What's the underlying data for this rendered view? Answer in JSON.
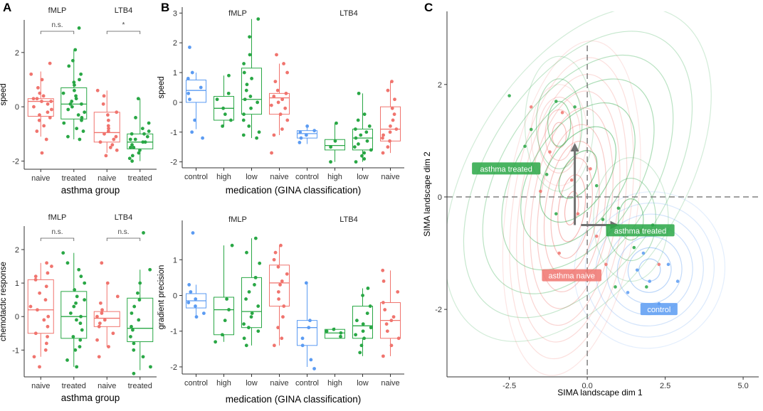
{
  "panels": {
    "a": "A",
    "b": "B",
    "c": "C"
  },
  "colors": {
    "naive": "#F0746E",
    "treated": "#29A745",
    "control": "#5B9BF2",
    "grid": "#dddddd",
    "axis": "#333333",
    "arrow": "#707070"
  },
  "chart_data": [
    {
      "id": "A-top",
      "type": "box",
      "title": "",
      "xlabel": "asthma group",
      "ylabel": "speed",
      "ylim": [
        -2.3,
        3.2
      ],
      "yticks": [
        -2,
        0,
        2
      ],
      "facets": [
        {
          "label": "fMLP",
          "significance": "n.s."
        },
        {
          "label": "LTB4",
          "significance": "*"
        }
      ],
      "groups": [
        {
          "facet": 0,
          "category": "naive",
          "color": "naive",
          "q1": -0.35,
          "median": 0.2,
          "q3": 0.3,
          "lo": -1.1,
          "hi": 1.3,
          "points": [
            1.6,
            1.2,
            1.0,
            0.7,
            0.5,
            0.4,
            0.3,
            0.3,
            0.2,
            0.2,
            0.1,
            0.0,
            -0.1,
            -0.2,
            -0.3,
            -0.4,
            -0.5,
            -0.7,
            -0.9,
            -1.2,
            -1.7
          ]
        },
        {
          "facet": 0,
          "category": "treated",
          "color": "treated",
          "q1": -0.45,
          "median": 0.1,
          "q3": 0.7,
          "lo": -1.2,
          "hi": 2.1,
          "points": [
            2.9,
            2.1,
            1.7,
            1.5,
            1.2,
            1.0,
            0.9,
            0.8,
            0.6,
            0.5,
            0.4,
            0.3,
            0.2,
            0.1,
            0.1,
            0.0,
            -0.1,
            -0.2,
            -0.3,
            -0.4,
            -0.5,
            -0.6,
            -0.8,
            -0.9,
            -1.1,
            -1.2
          ]
        },
        {
          "facet": 1,
          "category": "naive",
          "color": "naive",
          "q1": -1.3,
          "median": -0.95,
          "q3": -0.2,
          "lo": -1.7,
          "hi": 0.6,
          "points": [
            0.6,
            0.4,
            0.1,
            -0.2,
            -0.3,
            -0.5,
            -0.7,
            -0.8,
            -0.9,
            -1.0,
            -1.1,
            -1.2,
            -1.3,
            -1.4,
            -1.5,
            -1.6,
            -1.8
          ]
        },
        {
          "facet": 1,
          "category": "treated",
          "color": "treated",
          "q1": -1.55,
          "median": -1.3,
          "q3": -1.0,
          "lo": -2.0,
          "hi": 0.3,
          "points": [
            0.3,
            -0.4,
            -0.6,
            -0.8,
            -0.9,
            -1.0,
            -1.0,
            -1.1,
            -1.2,
            -1.2,
            -1.3,
            -1.3,
            -1.4,
            -1.5,
            -1.5,
            -1.6,
            -1.7,
            -1.8,
            -1.9,
            -2.0
          ]
        }
      ]
    },
    {
      "id": "A-bottom",
      "type": "box",
      "title": "",
      "xlabel": "asthma group",
      "ylabel": "chemotactic response",
      "ylim": [
        -1.8,
        2.7
      ],
      "yticks": [
        -1,
        0,
        1,
        2
      ],
      "facets": [
        {
          "label": "fMLP",
          "significance": "n.s."
        },
        {
          "label": "LTB4",
          "significance": "n.s."
        }
      ],
      "groups": [
        {
          "facet": 0,
          "category": "naive",
          "color": "naive",
          "q1": -0.5,
          "median": 0.2,
          "q3": 1.1,
          "lo": -1.2,
          "hi": 1.6,
          "points": [
            1.6,
            1.5,
            1.3,
            1.2,
            1.1,
            0.9,
            0.7,
            0.5,
            0.3,
            0.2,
            0.0,
            -0.1,
            -0.3,
            -0.5,
            -0.6,
            -0.8,
            -1.0,
            -1.2,
            -1.5
          ]
        },
        {
          "facet": 0,
          "category": "treated",
          "color": "treated",
          "q1": -0.65,
          "median": 0.0,
          "q3": 0.75,
          "lo": -1.5,
          "hi": 1.9,
          "points": [
            1.9,
            1.6,
            1.4,
            1.2,
            1.0,
            0.8,
            0.6,
            0.5,
            0.4,
            0.3,
            0.1,
            0.0,
            -0.1,
            -0.2,
            -0.4,
            -0.6,
            -0.7,
            -0.9,
            -1.0,
            -1.3,
            -1.5
          ]
        },
        {
          "facet": 1,
          "category": "naive",
          "color": "naive",
          "q1": -0.3,
          "median": -0.05,
          "q3": 0.15,
          "lo": -0.9,
          "hi": 1.0,
          "points": [
            1.6,
            1.0,
            0.6,
            0.4,
            0.2,
            0.1,
            0.0,
            -0.1,
            -0.2,
            -0.3,
            -0.5,
            -0.7,
            -0.9,
            -1.2
          ]
        },
        {
          "facet": 1,
          "category": "treated",
          "color": "treated",
          "q1": -0.75,
          "median": -0.35,
          "q3": 0.55,
          "lo": -1.6,
          "hi": 1.4,
          "points": [
            2.5,
            1.4,
            1.0,
            0.7,
            0.5,
            0.3,
            0.1,
            -0.1,
            -0.3,
            -0.4,
            -0.6,
            -0.8,
            -1.0,
            -1.2,
            -1.5,
            -1.7
          ]
        }
      ]
    },
    {
      "id": "B-top",
      "type": "box",
      "title": "",
      "xlabel": "medication (GINA classification)",
      "ylabel": "speed",
      "ylim": [
        -2.2,
        3.2
      ],
      "yticks": [
        -2,
        -1,
        0,
        1,
        2,
        3
      ],
      "facets": [
        {
          "label": "fMLP"
        },
        {
          "label": "LTB4"
        }
      ],
      "groups": [
        {
          "facet": 0,
          "category": "control",
          "color": "control",
          "q1": 0.0,
          "median": 0.4,
          "q3": 0.75,
          "lo": -0.9,
          "hi": 1.0,
          "points": [
            1.85,
            1.0,
            0.8,
            0.5,
            0.3,
            0.1,
            -0.6,
            -1.0,
            -1.2
          ]
        },
        {
          "facet": 0,
          "category": "high",
          "color": "treated",
          "q1": -0.6,
          "median": -0.2,
          "q3": 0.2,
          "lo": -0.8,
          "hi": 0.9,
          "points": [
            0.9,
            0.3,
            0.1,
            -0.2,
            -0.4,
            -0.6,
            -0.8
          ]
        },
        {
          "facet": 0,
          "category": "low",
          "color": "treated",
          "q1": -0.4,
          "median": 0.1,
          "q3": 1.15,
          "lo": -1.2,
          "hi": 2.8,
          "points": [
            2.8,
            2.2,
            1.6,
            1.3,
            1.0,
            0.8,
            0.6,
            0.4,
            0.2,
            0.1,
            0.0,
            -0.2,
            -0.4,
            -0.6,
            -0.8,
            -1.0,
            -1.1,
            -1.2
          ]
        },
        {
          "facet": 0,
          "category": "naive",
          "color": "naive",
          "q1": -0.4,
          "median": 0.15,
          "q3": 0.3,
          "lo": -1.1,
          "hi": 1.3,
          "points": [
            1.6,
            1.3,
            1.0,
            0.7,
            0.4,
            0.3,
            0.2,
            0.1,
            0.0,
            -0.1,
            -0.2,
            -0.4,
            -0.6,
            -0.9,
            -1.1,
            -1.7
          ]
        },
        {
          "facet": 1,
          "category": "control",
          "color": "control",
          "q1": -1.2,
          "median": -1.05,
          "q3": -0.95,
          "lo": -1.4,
          "hi": -0.8,
          "points": [
            -0.8,
            -0.95,
            -1.0,
            -1.1,
            -1.2,
            -1.35
          ]
        },
        {
          "facet": 1,
          "category": "high",
          "color": "treated",
          "q1": -1.6,
          "median": -1.45,
          "q3": -1.25,
          "lo": -2.0,
          "hi": -0.7,
          "points": [
            -0.7,
            -1.3,
            -1.5,
            -2.0
          ]
        },
        {
          "facet": 1,
          "category": "low",
          "color": "treated",
          "q1": -1.6,
          "median": -1.2,
          "q3": -0.9,
          "lo": -2.0,
          "hi": 0.3,
          "points": [
            0.3,
            -0.4,
            -0.6,
            -0.8,
            -0.9,
            -1.0,
            -1.1,
            -1.2,
            -1.3,
            -1.4,
            -1.5,
            -1.6,
            -1.7,
            -1.8,
            -1.9,
            -2.0
          ]
        },
        {
          "facet": 1,
          "category": "naive",
          "color": "naive",
          "q1": -1.3,
          "median": -0.9,
          "q3": -0.15,
          "lo": -1.7,
          "hi": 0.7,
          "points": [
            0.7,
            0.4,
            0.1,
            -0.2,
            -0.4,
            -0.6,
            -0.8,
            -0.9,
            -1.0,
            -1.1,
            -1.2,
            -1.3,
            -1.5,
            -1.7
          ]
        }
      ]
    },
    {
      "id": "B-bottom",
      "type": "box",
      "title": "",
      "xlabel": "medication (GINA classification)",
      "ylabel": "gradient precision",
      "ylim": [
        -2.2,
        2.1
      ],
      "yticks": [
        -2,
        -1,
        0,
        1
      ],
      "facets": [
        {
          "label": "fMLP"
        },
        {
          "label": "LTB4"
        }
      ],
      "groups": [
        {
          "facet": 0,
          "category": "control",
          "color": "control",
          "q1": -0.35,
          "median": -0.15,
          "q3": 0.05,
          "lo": -0.6,
          "hi": 0.3,
          "points": [
            1.75,
            0.3,
            0.1,
            -0.1,
            -0.2,
            -0.3,
            -0.5,
            -0.6
          ]
        },
        {
          "facet": 0,
          "category": "high",
          "color": "treated",
          "q1": -1.1,
          "median": -0.4,
          "q3": -0.05,
          "lo": -1.3,
          "hi": 1.4,
          "points": [
            1.4,
            -0.1,
            -0.4,
            -0.7,
            -1.1,
            -1.3
          ]
        },
        {
          "facet": 0,
          "category": "low",
          "color": "treated",
          "q1": -0.9,
          "median": -0.45,
          "q3": 0.5,
          "lo": -1.4,
          "hi": 1.6,
          "points": [
            1.6,
            1.2,
            0.9,
            0.5,
            0.3,
            0.1,
            -0.1,
            -0.3,
            -0.5,
            -0.6,
            -0.8,
            -0.9,
            -1.0,
            -1.2,
            -1.4
          ]
        },
        {
          "facet": 0,
          "category": "naive",
          "color": "naive",
          "q1": -0.3,
          "median": 0.35,
          "q3": 0.85,
          "lo": -1.4,
          "hi": 1.4,
          "points": [
            1.4,
            1.2,
            1.0,
            0.8,
            0.6,
            0.4,
            0.3,
            0.1,
            -0.1,
            -0.3,
            -0.6,
            -0.9,
            -1.2,
            -1.4
          ]
        },
        {
          "facet": 1,
          "category": "control",
          "color": "control",
          "q1": -1.4,
          "median": -0.9,
          "q3": -0.7,
          "lo": -2.0,
          "hi": 0.35,
          "points": [
            0.35,
            -0.7,
            -0.9,
            -1.2,
            -1.4,
            -1.8,
            -2.05
          ]
        },
        {
          "facet": 1,
          "category": "high",
          "color": "treated",
          "q1": -1.2,
          "median": -1.05,
          "q3": -0.95,
          "lo": -1.2,
          "hi": -0.9,
          "points": [
            -0.95,
            -1.0,
            -1.05,
            -1.15
          ]
        },
        {
          "facet": 1,
          "category": "low",
          "color": "treated",
          "q1": -1.2,
          "median": -0.85,
          "q3": -0.3,
          "lo": -1.7,
          "hi": 0.2,
          "points": [
            0.2,
            0.0,
            -0.3,
            -0.5,
            -0.7,
            -0.8,
            -0.9,
            -1.0,
            -1.1,
            -1.2,
            -1.4,
            -1.6
          ]
        },
        {
          "facet": 1,
          "category": "naive",
          "color": "naive",
          "q1": -1.2,
          "median": -0.7,
          "q3": -0.2,
          "lo": -1.7,
          "hi": 0.7,
          "points": [
            0.7,
            0.4,
            0.1,
            -0.2,
            -0.4,
            -0.6,
            -0.7,
            -0.8,
            -1.0,
            -1.2,
            -1.4,
            -1.7
          ]
        }
      ]
    },
    {
      "id": "C",
      "type": "contour",
      "title": "",
      "xlabel": "SIMA landscape dim 1",
      "ylabel": "SIMA landscape dim 2",
      "xlim": [
        -4.5,
        5.5
      ],
      "ylim": [
        -3.2,
        3.3
      ],
      "xticks": [
        -2.5,
        0.0,
        2.5,
        5.0
      ],
      "xtick_labels": [
        "-2.5",
        "0.0",
        "2.5",
        "5.0"
      ],
      "yticks": [
        -2,
        0,
        2
      ],
      "ytick_labels": [
        "-2",
        "0",
        "2"
      ],
      "reference_lines": {
        "x": 0,
        "y": 0
      },
      "densities": [
        {
          "group": "asthma naive",
          "color": "naive",
          "peaks": [
            [
              -0.4,
              -0.55
            ],
            [
              -0.9,
              1.1
            ]
          ]
        },
        {
          "group": "asthma treated",
          "color": "treated",
          "peaks": [
            [
              -0.8,
              1.3
            ],
            [
              1.4,
              -0.4
            ]
          ]
        },
        {
          "group": "control",
          "color": "control",
          "peaks": [
            [
              2.0,
              -1.3
            ]
          ]
        }
      ],
      "arrows": [
        {
          "from": [
            -0.4,
            -0.5
          ],
          "to": [
            -0.4,
            0.9
          ]
        },
        {
          "from": [
            -0.2,
            -0.5
          ],
          "to": [
            0.9,
            -0.5
          ]
        }
      ],
      "labels": [
        {
          "text": "asthma treated",
          "color": "treated",
          "at": [
            -2.6,
            0.5
          ]
        },
        {
          "text": "asthma treated",
          "color": "treated",
          "at": [
            1.7,
            -0.6
          ]
        },
        {
          "text": "asthma naive",
          "color": "naive",
          "at": [
            -0.5,
            -1.4
          ]
        },
        {
          "text": "control",
          "color": "control",
          "at": [
            2.3,
            -2.0
          ]
        }
      ],
      "points": [
        {
          "g": "naive",
          "x": -0.8,
          "y": 1.5
        },
        {
          "g": "naive",
          "x": -1.2,
          "y": 0.8
        },
        {
          "g": "naive",
          "x": -0.5,
          "y": 0.3
        },
        {
          "g": "naive",
          "x": -1.5,
          "y": 0.1
        },
        {
          "g": "naive",
          "x": -0.3,
          "y": -0.3
        },
        {
          "g": "naive",
          "x": 0.3,
          "y": -0.7
        },
        {
          "g": "naive",
          "x": -0.9,
          "y": -1.0
        },
        {
          "g": "naive",
          "x": 0.6,
          "y": -1.2
        },
        {
          "g": "naive",
          "x": -1.8,
          "y": 1.6
        },
        {
          "g": "naive",
          "x": 0.1,
          "y": 0.5
        },
        {
          "g": "naive",
          "x": 1.7,
          "y": -0.6
        },
        {
          "g": "naive",
          "x": 2.3,
          "y": -1.2
        },
        {
          "g": "treated",
          "x": -2.5,
          "y": 1.8
        },
        {
          "g": "treated",
          "x": -1.8,
          "y": 1.2
        },
        {
          "g": "treated",
          "x": -1.0,
          "y": 1.7
        },
        {
          "g": "treated",
          "x": -0.4,
          "y": 1.6
        },
        {
          "g": "treated",
          "x": -1.3,
          "y": 0.4
        },
        {
          "g": "treated",
          "x": 0.3,
          "y": 0.2
        },
        {
          "g": "treated",
          "x": 1.0,
          "y": -0.2
        },
        {
          "g": "treated",
          "x": 1.5,
          "y": -0.9
        },
        {
          "g": "treated",
          "x": 0.9,
          "y": -1.6
        },
        {
          "g": "treated",
          "x": 2.1,
          "y": -0.5
        },
        {
          "g": "treated",
          "x": -2.0,
          "y": 0.9
        },
        {
          "g": "treated",
          "x": 0.5,
          "y": -0.4
        },
        {
          "g": "treated",
          "x": 1.9,
          "y": -1.6
        },
        {
          "g": "treated",
          "x": -1.0,
          "y": -0.3
        },
        {
          "g": "control",
          "x": 1.6,
          "y": -1.3
        },
        {
          "g": "control",
          "x": 2.0,
          "y": -1.5
        },
        {
          "g": "control",
          "x": 2.6,
          "y": -1.2
        },
        {
          "g": "control",
          "x": 2.3,
          "y": -1.9
        },
        {
          "g": "control",
          "x": 1.3,
          "y": -1.7
        },
        {
          "g": "control",
          "x": 2.9,
          "y": -1.5
        },
        {
          "g": "control",
          "x": 1.8,
          "y": -1.0
        }
      ]
    }
  ]
}
